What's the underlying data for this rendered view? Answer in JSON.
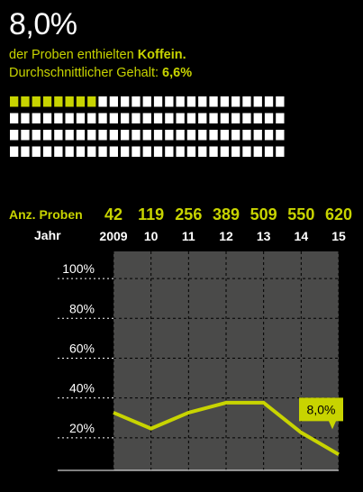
{
  "headline": {
    "big_value": "8,0%",
    "line1_prefix": "der Proben enthielten ",
    "line1_highlight": "Koffein.",
    "line2_prefix": "Durchschnittlicher Gehalt: ",
    "line2_highlight": "6,6%"
  },
  "waffle": {
    "total": 100,
    "highlighted": 8,
    "columns": 25,
    "rows": 4
  },
  "colors": {
    "accent": "#c8d400",
    "background": "#000000",
    "plot_bg": "#4a4a49",
    "text": "#ffffff"
  },
  "chart_data": {
    "type": "line",
    "row_labels": {
      "samples": "Anz. Proben",
      "year": "Jahr"
    },
    "x": [
      "2009",
      "10",
      "11",
      "12",
      "13",
      "14",
      "15"
    ],
    "samples": [
      "42",
      "119",
      "256",
      "389",
      "509",
      "550",
      "620"
    ],
    "series": [
      {
        "values": [
          29,
          21,
          29,
          34,
          34,
          19,
          8
        ]
      }
    ],
    "ylim": [
      0,
      110
    ],
    "yticks": [
      20,
      40,
      60,
      80,
      100
    ],
    "ytick_labels": [
      "20%",
      "40%",
      "60%",
      "80%",
      "100%"
    ],
    "annotation": {
      "text": "8,0%",
      "index": 6
    },
    "grid": true
  }
}
